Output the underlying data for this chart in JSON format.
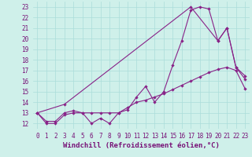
{
  "bg_color": "#cff0ea",
  "grid_color": "#aaddda",
  "line_color": "#882288",
  "xlim": [
    -0.5,
    23.5
  ],
  "ylim": [
    11.5,
    23.5
  ],
  "xticks": [
    0,
    1,
    2,
    3,
    4,
    5,
    6,
    7,
    8,
    9,
    10,
    11,
    12,
    13,
    14,
    15,
    16,
    17,
    18,
    19,
    20,
    21,
    22,
    23
  ],
  "yticks": [
    12,
    13,
    14,
    15,
    16,
    17,
    18,
    19,
    20,
    21,
    22,
    23
  ],
  "xlabel": "Windchill (Refroidissement éolien,°C)",
  "font_color": "#771177",
  "tick_fontsize": 5.5,
  "label_fontsize": 6.5,
  "line1_x": [
    0,
    1,
    2,
    3,
    4,
    5,
    6,
    7,
    8,
    9,
    10,
    11,
    12,
    13,
    14,
    15,
    16,
    17,
    18,
    19,
    20,
    21,
    22,
    23
  ],
  "line1_y": [
    13,
    12,
    12,
    12.8,
    13,
    13,
    12,
    12.5,
    12,
    13,
    13.3,
    14.5,
    15.5,
    14,
    15,
    17.5,
    19.8,
    22.7,
    23,
    22.8,
    19.8,
    21,
    17.3,
    16.5
  ],
  "line2_x": [
    0,
    1,
    2,
    3,
    4,
    5,
    6,
    7,
    8,
    9,
    10,
    11,
    12,
    13,
    14,
    15,
    16,
    17,
    18,
    19,
    20,
    21,
    22,
    23
  ],
  "line2_y": [
    13,
    12.2,
    12.2,
    13,
    13.2,
    13,
    13,
    13,
    13,
    13,
    13.5,
    14,
    14.2,
    14.5,
    14.8,
    15.2,
    15.6,
    16,
    16.4,
    16.8,
    17.1,
    17.3,
    17.0,
    15.3
  ],
  "line3_x": [
    0,
    3,
    17,
    20,
    21,
    22,
    23
  ],
  "line3_y": [
    13,
    13.8,
    23,
    19.8,
    21,
    17.3,
    16.2
  ],
  "marker": "D",
  "marker_size": 2.2,
  "linewidth": 0.8
}
